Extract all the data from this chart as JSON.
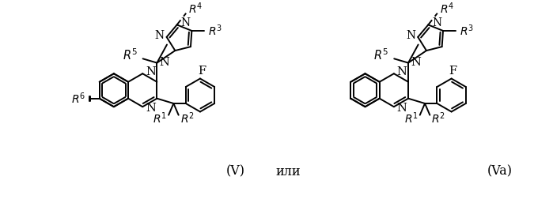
{
  "bg_color": "#ffffff",
  "line_color": "#000000",
  "figsize": [
    6.99,
    2.52
  ],
  "dpi": 100,
  "label_V": "(V)",
  "label_Va": "(Va)",
  "label_ili": "или",
  "lw": 1.4,
  "fs": 10.5,
  "bl": 22
}
